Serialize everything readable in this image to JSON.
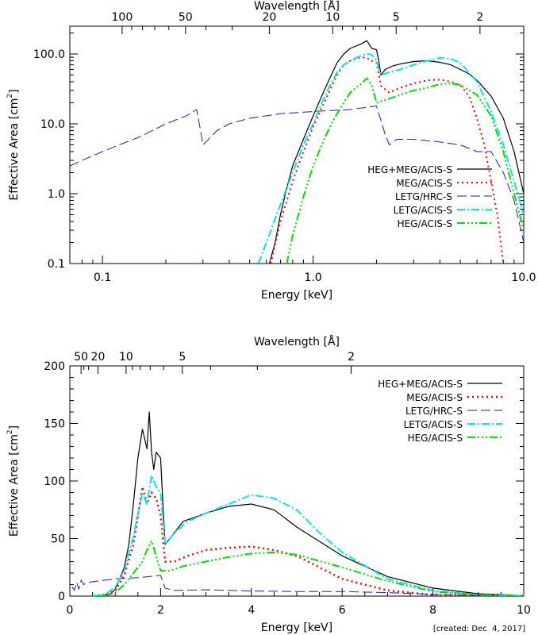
{
  "chart_data": [
    {
      "type": "line",
      "scale": "log-log",
      "title": "",
      "xlabel": "Energy [keV]",
      "ylabel": "Effective Area [cm²]",
      "ylabel_parts": {
        "text": "Effective Area [cm",
        "sup": "2",
        "close": "]"
      },
      "xlim": [
        0.07,
        10.0
      ],
      "ylim": [
        0.1,
        250
      ],
      "x_ticks": [
        {
          "v": 0.1,
          "label": "0.1"
        },
        {
          "v": 1.0,
          "label": "1.0"
        },
        {
          "v": 10.0,
          "label": "10.0"
        }
      ],
      "y_ticks": [
        {
          "v": 0.1,
          "label": "0.1"
        },
        {
          "v": 1.0,
          "label": "1.0"
        },
        {
          "v": 10.0,
          "label": "10.0"
        },
        {
          "v": 100.0,
          "label": "100.0"
        }
      ],
      "top_axis": {
        "label": "Wavelength [Å]",
        "ticks": [
          {
            "v": 100,
            "label": "100"
          },
          {
            "v": 50,
            "label": "50"
          },
          {
            "v": 20,
            "label": "20"
          },
          {
            "v": 10,
            "label": "10"
          },
          {
            "v": 5,
            "label": "5"
          },
          {
            "v": 2,
            "label": "2"
          }
        ]
      },
      "series": [
        {
          "name": "HEG+MEG/ACIS-S",
          "color": "#000000",
          "dash": "",
          "width": 1.2,
          "x": [
            0.62,
            0.66,
            0.7,
            0.75,
            0.8,
            0.9,
            1.0,
            1.1,
            1.2,
            1.3,
            1.4,
            1.5,
            1.6,
            1.7,
            1.8,
            1.9,
            2.0,
            2.05,
            2.1,
            2.2,
            2.4,
            2.6,
            3.0,
            3.5,
            4.0,
            4.5,
            5.0,
            5.5,
            6.0,
            7.0,
            8.0,
            9.0,
            10.0
          ],
          "y": [
            0.1,
            0.2,
            0.5,
            1.2,
            2.5,
            6,
            13,
            25,
            45,
            75,
            100,
            120,
            130,
            140,
            155,
            120,
            115,
            80,
            50,
            60,
            68,
            72,
            78,
            80,
            76,
            70,
            60,
            52,
            42,
            25,
            12,
            4,
            1
          ]
        },
        {
          "name": "MEG/ACIS-S",
          "color": "#ff0000",
          "dash": "2,4",
          "width": 2,
          "x": [
            0.63,
            0.7,
            0.8,
            0.9,
            1.0,
            1.1,
            1.2,
            1.3,
            1.4,
            1.5,
            1.6,
            1.7,
            1.8,
            1.9,
            2.0,
            2.1,
            2.3,
            2.6,
            3.0,
            3.5,
            4.0,
            4.5,
            5.0,
            5.5,
            6.0,
            6.5,
            7.0,
            7.5,
            8.0
          ],
          "y": [
            0.1,
            0.4,
            1.5,
            4,
            9,
            17,
            30,
            50,
            70,
            80,
            85,
            90,
            88,
            80,
            75,
            35,
            28,
            33,
            38,
            42,
            43,
            40,
            36,
            25,
            12,
            5,
            1.5,
            0.5,
            0.1
          ]
        },
        {
          "name": "LETG/HRC-S",
          "color": "#1a1ad0",
          "dash": "12,5",
          "width": 1,
          "x": [
            0.07,
            0.08,
            0.1,
            0.12,
            0.15,
            0.2,
            0.25,
            0.28,
            0.29,
            0.3,
            0.35,
            0.4,
            0.5,
            0.7,
            1.0,
            1.5,
            2.0,
            2.2,
            2.3,
            2.5,
            3.0,
            4.0,
            5.0,
            6.0,
            7.0,
            8.0,
            9.0,
            10.0
          ],
          "y": [
            2.5,
            3,
            4,
            5,
            6.5,
            10,
            13,
            16,
            9,
            5,
            8,
            10,
            12,
            14,
            15,
            16,
            18,
            7,
            5,
            6,
            6,
            5.5,
            5,
            4,
            4,
            2,
            0.8,
            0.2
          ]
        },
        {
          "name": "LETG/ACIS-S",
          "color": "#00e5ee",
          "dash": "10,3,2,3",
          "width": 2,
          "x": [
            0.55,
            0.6,
            0.7,
            0.8,
            0.9,
            1.0,
            1.1,
            1.2,
            1.3,
            1.4,
            1.5,
            1.6,
            1.7,
            1.8,
            1.9,
            2.0,
            2.1,
            2.3,
            2.6,
            3.0,
            3.5,
            4.0,
            4.5,
            5.0,
            6.0,
            7.0,
            8.0,
            9.0,
            10.0
          ],
          "y": [
            0.1,
            0.2,
            0.7,
            2,
            5,
            10,
            20,
            35,
            55,
            70,
            80,
            88,
            95,
            100,
            98,
            80,
            50,
            55,
            60,
            70,
            80,
            88,
            85,
            75,
            40,
            15,
            5,
            1.5,
            0.5
          ]
        },
        {
          "name": "HEG/ACIS-S",
          "color": "#00dd00",
          "dash": "10,3,2,3,2,3,2,3",
          "width": 2,
          "x": [
            0.75,
            0.8,
            0.9,
            1.0,
            1.1,
            1.2,
            1.3,
            1.4,
            1.5,
            1.6,
            1.7,
            1.8,
            1.9,
            2.0,
            2.2,
            2.5,
            3.0,
            3.5,
            4.0,
            4.5,
            5.0,
            6.0,
            7.0,
            8.0,
            9.0,
            10.0
          ],
          "y": [
            0.1,
            0.25,
            0.9,
            2.5,
            5,
            9,
            14,
            20,
            28,
            33,
            38,
            45,
            35,
            20,
            22,
            25,
            30,
            33,
            37,
            38,
            36,
            26,
            13,
            4,
            1,
            0.3
          ]
        }
      ]
    },
    {
      "type": "line",
      "scale": "linear",
      "title": "",
      "xlabel": "Energy [keV]",
      "ylabel": "Effective Area [cm²]",
      "ylabel_parts": {
        "text": "Effective Area [cm",
        "sup": "2",
        "close": "]"
      },
      "xlim": [
        0,
        10
      ],
      "ylim": [
        0,
        200
      ],
      "x_ticks": [
        {
          "v": 0,
          "label": "0"
        },
        {
          "v": 2,
          "label": "2"
        },
        {
          "v": 4,
          "label": "4"
        },
        {
          "v": 6,
          "label": "6"
        },
        {
          "v": 8,
          "label": "8"
        },
        {
          "v": 10,
          "label": "10"
        }
      ],
      "y_ticks": [
        {
          "v": 0,
          "label": "0"
        },
        {
          "v": 50,
          "label": "50"
        },
        {
          "v": 100,
          "label": "100"
        },
        {
          "v": 150,
          "label": "150"
        },
        {
          "v": 200,
          "label": "200"
        }
      ],
      "top_axis": {
        "label": "Wavelength [Å]",
        "ticks": [
          {
            "v": 50,
            "label": "50"
          },
          {
            "v": 20,
            "label": "20"
          },
          {
            "v": 10,
            "label": "10"
          },
          {
            "v": 5,
            "label": "5"
          },
          {
            "v": 2,
            "label": "2"
          }
        ]
      },
      "series": [
        {
          "name": "HEG+MEG/ACIS-S",
          "color": "#000000",
          "dash": "",
          "width": 1.2,
          "x": [
            0.5,
            0.7,
            0.9,
            1.0,
            1.1,
            1.2,
            1.3,
            1.4,
            1.5,
            1.6,
            1.7,
            1.75,
            1.8,
            1.85,
            1.9,
            2.0,
            2.05,
            2.1,
            2.2,
            2.5,
            3.0,
            3.5,
            4.0,
            4.5,
            5.0,
            6.0,
            7.0,
            8.0,
            9.0,
            10.0
          ],
          "y": [
            0,
            0.5,
            2,
            6,
            15,
            25,
            45,
            80,
            120,
            145,
            128,
            160,
            125,
            110,
            125,
            120,
            80,
            45,
            50,
            65,
            72,
            78,
            80,
            75,
            60,
            35,
            17,
            7,
            2,
            0.5
          ]
        },
        {
          "name": "MEG/ACIS-S",
          "color": "#ff0000",
          "dash": "2,4",
          "width": 2.5,
          "x": [
            0.5,
            0.8,
            1.0,
            1.2,
            1.4,
            1.5,
            1.6,
            1.7,
            1.8,
            1.9,
            2.0,
            2.1,
            2.3,
            2.6,
            3.0,
            3.5,
            4.0,
            4.5,
            5.0,
            6.0,
            7.0,
            8.0,
            9.0,
            10.0
          ],
          "y": [
            0,
            1,
            5,
            18,
            45,
            70,
            95,
            80,
            90,
            85,
            70,
            30,
            30,
            35,
            40,
            42,
            43,
            40,
            35,
            15,
            5,
            1,
            0.2,
            0
          ]
        },
        {
          "name": "LETG/HRC-S",
          "color": "#1a1ad0",
          "dash": "12,5",
          "width": 1,
          "x": [
            0.05,
            0.1,
            0.15,
            0.2,
            0.25,
            0.3,
            0.4,
            0.6,
            0.8,
            1.0,
            1.5,
            2.0,
            2.1,
            2.3,
            3.0,
            4.0,
            5.0,
            6.0,
            7.0,
            8.0,
            9.0,
            10.0
          ],
          "y": [
            8,
            5,
            12,
            6,
            14,
            10,
            12,
            13,
            14,
            15,
            16,
            18,
            7,
            5,
            5.5,
            4.5,
            4,
            4,
            3,
            1.5,
            0.5,
            0.1
          ]
        },
        {
          "name": "LETG/ACIS-S",
          "color": "#00e5ee",
          "dash": "10,3,2,3",
          "width": 2,
          "x": [
            0.5,
            0.8,
            1.0,
            1.2,
            1.4,
            1.6,
            1.7,
            1.8,
            1.9,
            2.0,
            2.1,
            2.3,
            2.6,
            3.0,
            3.5,
            4.0,
            4.5,
            5.0,
            5.5,
            6.0,
            7.0,
            8.0,
            9.0,
            10.0
          ],
          "y": [
            0,
            2,
            8,
            22,
            52,
            90,
            80,
            105,
            95,
            90,
            45,
            55,
            65,
            72,
            80,
            88,
            85,
            75,
            55,
            38,
            15,
            5,
            1,
            0.3
          ]
        },
        {
          "name": "HEG/ACIS-S",
          "color": "#00dd00",
          "dash": "10,3,2,3,2,3,2,3",
          "width": 2,
          "x": [
            0.6,
            0.8,
            1.0,
            1.2,
            1.4,
            1.6,
            1.7,
            1.8,
            1.9,
            2.0,
            2.2,
            2.5,
            3.0,
            3.5,
            4.0,
            4.5,
            5.0,
            6.0,
            7.0,
            8.0,
            9.0,
            10.0
          ],
          "y": [
            0,
            0.5,
            3,
            10,
            20,
            30,
            40,
            48,
            35,
            22,
            22,
            26,
            30,
            34,
            37,
            38,
            36,
            25,
            13,
            4,
            1,
            0.2
          ]
        }
      ]
    }
  ],
  "created_note": "[created: Dec  4, 2017]"
}
